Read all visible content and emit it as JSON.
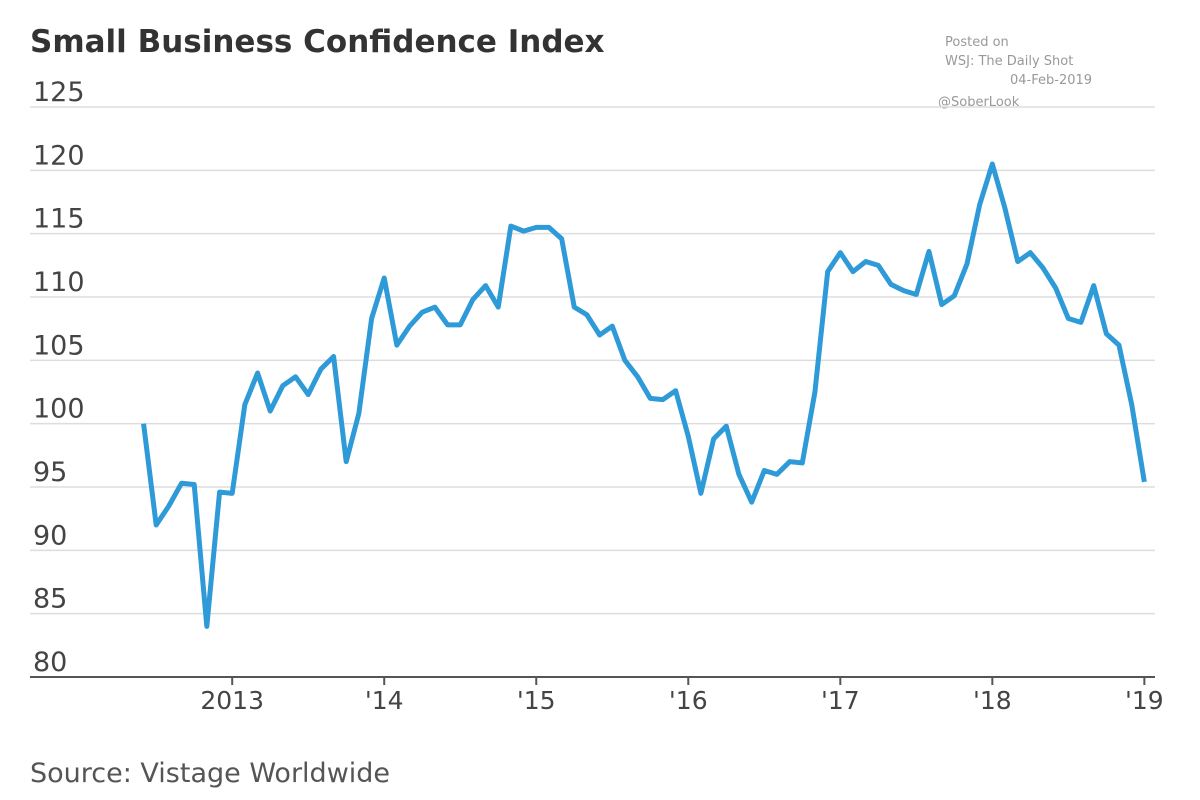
{
  "chart_data": {
    "type": "line",
    "title": "Small Business Confidence Index",
    "notes": [
      "Posted on",
      "WSJ: The Daily Shot",
      "04-Feb-2019",
      "@SoberLook"
    ],
    "source": "Source: Vistage Worldwide",
    "x": [
      2012.417,
      2012.5,
      2012.583,
      2012.667,
      2012.75,
      2012.833,
      2012.917,
      2013.0,
      2013.083,
      2013.167,
      2013.25,
      2013.333,
      2013.417,
      2013.5,
      2013.583,
      2013.667,
      2013.75,
      2013.833,
      2013.917,
      2014.0,
      2014.083,
      2014.167,
      2014.25,
      2014.333,
      2014.417,
      2014.5,
      2014.583,
      2014.667,
      2014.75,
      2014.833,
      2014.917,
      2015.0,
      2015.083,
      2015.167,
      2015.25,
      2015.333,
      2015.417,
      2015.5,
      2015.583,
      2015.667,
      2015.75,
      2015.833,
      2015.917,
      2016.0,
      2016.083,
      2016.167,
      2016.25,
      2016.333,
      2016.417,
      2016.5,
      2016.583,
      2016.667,
      2016.75,
      2016.833,
      2016.917,
      2017.0,
      2017.083,
      2017.167,
      2017.25,
      2017.333,
      2017.417,
      2017.5,
      2017.583,
      2017.667,
      2017.75,
      2017.833,
      2017.917,
      2018.0,
      2018.083,
      2018.167,
      2018.25,
      2018.333,
      2018.417,
      2018.5,
      2018.583,
      2018.667,
      2018.75,
      2018.833,
      2018.917,
      2019.0
    ],
    "series": [
      {
        "name": "Small Business Confidence Index",
        "color": "#2f9ad8",
        "values": [
          100,
          92,
          93.5,
          95.3,
          95.2,
          84,
          94.6,
          94.5,
          101.5,
          104,
          101,
          103,
          103.7,
          102.3,
          104.3,
          105.3,
          97,
          100.8,
          108.3,
          111.5,
          106.2,
          107.7,
          108.8,
          109.2,
          107.8,
          107.8,
          109.8,
          110.9,
          109.2,
          115.6,
          115.2,
          115.5,
          115.5,
          114.6,
          109.2,
          108.6,
          107,
          107.7,
          105,
          103.7,
          102,
          101.9,
          102.6,
          99,
          94.5,
          98.8,
          99.8,
          96,
          93.8,
          96.3,
          96,
          97,
          96.9,
          102.5,
          112,
          113.5,
          112,
          112.8,
          112.5,
          111,
          110.5,
          110.2,
          113.6,
          109.4,
          110.1,
          112.6,
          117.3,
          120.5,
          117,
          112.8,
          113.5,
          112.3,
          110.7,
          108.3,
          108,
          110.9,
          107.1,
          106.2,
          101.5,
          95.4
        ]
      }
    ],
    "xlim": [
      2011.67,
      2019.07
    ],
    "xticks": [
      {
        "value": 2013,
        "label": "2013"
      },
      {
        "value": 2014,
        "label": "'14"
      },
      {
        "value": 2015,
        "label": "'15"
      },
      {
        "value": 2016,
        "label": "'16"
      },
      {
        "value": 2017,
        "label": "'17"
      },
      {
        "value": 2018,
        "label": "'18"
      },
      {
        "value": 2019,
        "label": "'19"
      }
    ],
    "ylim": [
      80,
      125
    ],
    "yticks": [
      80,
      85,
      90,
      95,
      100,
      105,
      110,
      115,
      120,
      125
    ],
    "grid": true
  }
}
